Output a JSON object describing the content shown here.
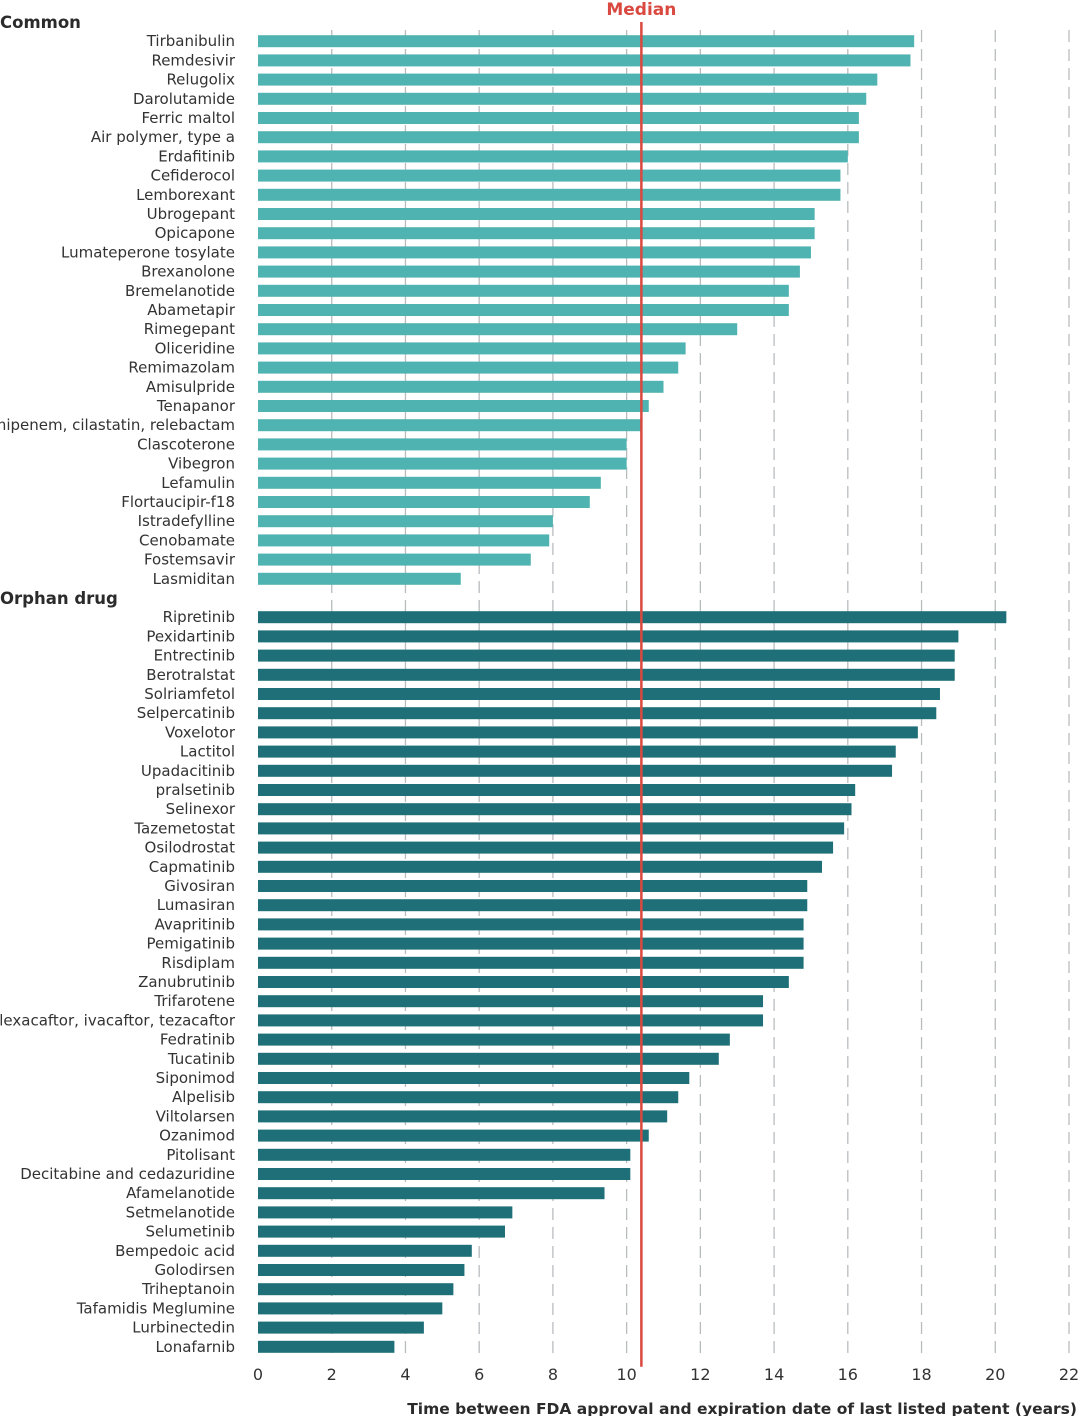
{
  "chart_data": {
    "type": "bar",
    "orientation": "horizontal",
    "xlabel": "Time between FDA approval and expiration date of last listed patent (years)",
    "xlim": [
      0,
      22
    ],
    "xticks": [
      0,
      2,
      4,
      6,
      8,
      10,
      12,
      14,
      16,
      18,
      20,
      22
    ],
    "grid": "vertical dashed",
    "median": {
      "label": "Median",
      "value": 10.4,
      "color": "#d9493f"
    },
    "groups": [
      {
        "name": "Common",
        "color": "#4fb3b1",
        "items": [
          {
            "label": "Tirbanibulin",
            "value": 17.8
          },
          {
            "label": "Remdesivir",
            "value": 17.7
          },
          {
            "label": "Relugolix",
            "value": 16.8
          },
          {
            "label": "Darolutamide",
            "value": 16.5
          },
          {
            "label": "Ferric maltol",
            "value": 16.3
          },
          {
            "label": "Air polymer, type a",
            "value": 16.3
          },
          {
            "label": "Erdafitinib",
            "value": 16.0
          },
          {
            "label": "Cefiderocol",
            "value": 15.8
          },
          {
            "label": "Lemborexant",
            "value": 15.8
          },
          {
            "label": "Ubrogepant",
            "value": 15.1
          },
          {
            "label": "Opicapone",
            "value": 15.1
          },
          {
            "label": "Lumateperone tosylate",
            "value": 15.0
          },
          {
            "label": "Brexanolone",
            "value": 14.7
          },
          {
            "label": "Bremelanotide",
            "value": 14.4
          },
          {
            "label": "Abametapir",
            "value": 14.4
          },
          {
            "label": "Rimegepant",
            "value": 13.0
          },
          {
            "label": "Oliceridine",
            "value": 11.6
          },
          {
            "label": "Remimazolam",
            "value": 11.4
          },
          {
            "label": "Amisulpride",
            "value": 11.0
          },
          {
            "label": "Tenapanor",
            "value": 10.6
          },
          {
            "label": "Imipenem, cilastatin, relebactam",
            "value": 10.4
          },
          {
            "label": "Clascoterone",
            "value": 10.0
          },
          {
            "label": "Vibegron",
            "value": 10.0
          },
          {
            "label": "Lefamulin",
            "value": 9.3
          },
          {
            "label": "Flortaucipir-f18",
            "value": 9.0
          },
          {
            "label": "Istradefylline",
            "value": 8.0
          },
          {
            "label": "Cenobamate",
            "value": 7.9
          },
          {
            "label": "Fostemsavir",
            "value": 7.4
          },
          {
            "label": "Lasmiditan",
            "value": 5.5
          }
        ]
      },
      {
        "name": "Orphan drug",
        "color": "#1f6f78",
        "items": [
          {
            "label": "Ripretinib",
            "value": 20.3
          },
          {
            "label": "Pexidartinib",
            "value": 19.0
          },
          {
            "label": "Entrectinib",
            "value": 18.9
          },
          {
            "label": "Berotralstat",
            "value": 18.9
          },
          {
            "label": "Solriamfetol",
            "value": 18.5
          },
          {
            "label": "Selpercatinib",
            "value": 18.4
          },
          {
            "label": "Voxelotor",
            "value": 17.9
          },
          {
            "label": "Lactitol",
            "value": 17.3
          },
          {
            "label": "Upadacitinib",
            "value": 17.2
          },
          {
            "label": "pralsetinib",
            "value": 16.2
          },
          {
            "label": "Selinexor",
            "value": 16.1
          },
          {
            "label": "Tazemetostat",
            "value": 15.9
          },
          {
            "label": "Osilodrostat",
            "value": 15.6
          },
          {
            "label": "Capmatinib",
            "value": 15.3
          },
          {
            "label": "Givosiran",
            "value": 14.9
          },
          {
            "label": "Lumasiran",
            "value": 14.9
          },
          {
            "label": "Avapritinib",
            "value": 14.8
          },
          {
            "label": "Pemigatinib",
            "value": 14.8
          },
          {
            "label": "Risdiplam",
            "value": 14.8
          },
          {
            "label": "Zanubrutinib",
            "value": 14.4
          },
          {
            "label": "Trifarotene",
            "value": 13.7
          },
          {
            "label": "Elexacaftor, ivacaftor, tezacaftor",
            "value": 13.7
          },
          {
            "label": "Fedratinib",
            "value": 12.8
          },
          {
            "label": "Tucatinib",
            "value": 12.5
          },
          {
            "label": "Siponimod",
            "value": 11.7
          },
          {
            "label": "Alpelisib",
            "value": 11.4
          },
          {
            "label": "Viltolarsen",
            "value": 11.1
          },
          {
            "label": "Ozanimod",
            "value": 10.6
          },
          {
            "label": "Pitolisant",
            "value": 10.1
          },
          {
            "label": "Decitabine and cedazuridine",
            "value": 10.1
          },
          {
            "label": "Afamelanotide",
            "value": 9.4
          },
          {
            "label": "Setmelanotide",
            "value": 6.9
          },
          {
            "label": "Selumetinib",
            "value": 6.7
          },
          {
            "label": "Bempedoic acid",
            "value": 5.8
          },
          {
            "label": "Golodirsen",
            "value": 5.6
          },
          {
            "label": "Triheptanoin",
            "value": 5.3
          },
          {
            "label": "Tafamidis Meglumine",
            "value": 5.0
          },
          {
            "label": "Lurbinectedin",
            "value": 4.5
          },
          {
            "label": "Lonafarnib",
            "value": 3.7
          }
        ]
      }
    ]
  }
}
